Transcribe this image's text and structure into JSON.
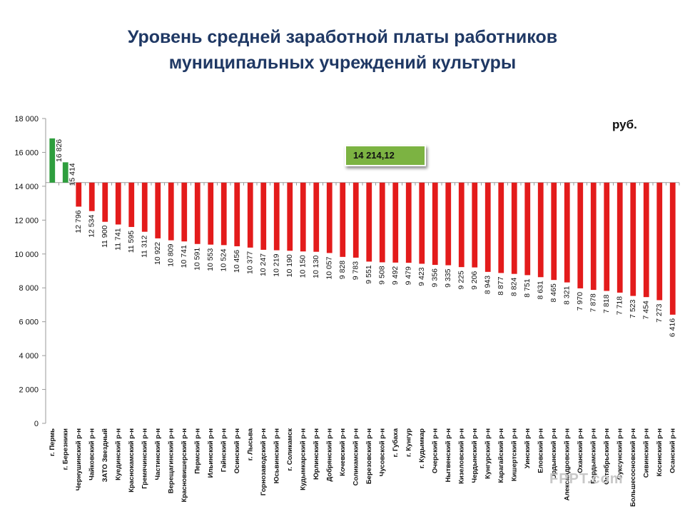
{
  "slide": {
    "title_line1": "Уровень средней заработной платы работников",
    "title_line2": "муниципальных учреждений культуры",
    "unit": "руб.",
    "average_label": "14 214,12",
    "watermark": "FPPT.com"
  },
  "colors": {
    "title": "#1f3864",
    "above_average": "#2e9e3e",
    "below_average": "#e31b1b",
    "average_box": "#7cb342"
  },
  "chart_data": {
    "type": "bar",
    "baseline": 14214.12,
    "ylim": [
      0,
      18000
    ],
    "yticks": [
      0,
      2000,
      4000,
      6000,
      8000,
      10000,
      12000,
      14000,
      16000,
      18000
    ],
    "ytick_labels": [
      "0",
      "2 000",
      "4 000",
      "6 000",
      "8 000",
      "10 000",
      "12 000",
      "14 000",
      "16 000",
      "18 000"
    ],
    "grid": false,
    "categories": [
      "г. Пермь",
      "г. Березники",
      "Чернушинский р-н",
      "Чайковский р-н",
      "ЗАТО Звездный",
      "Куединский р-н",
      "Краснокамский р-н",
      "Гремячинский р-н",
      "Частинский р-н",
      "Верещагинский р-н",
      "Красновишерский р-н",
      "Пермский р-н",
      "Ильинский р-н",
      "Гайнский р-н",
      "Осинский р-н",
      "г. Лысьва",
      "Горнозаводский р-н",
      "Юсьвинский р-н",
      "г. Соликамск",
      "Кудымкарский р-н",
      "Юрлинский р-н",
      "Добрянский р-н",
      "Кочевский р-н",
      "Соликамский р-н",
      "Березовский р-н",
      "Чусовской р-н",
      "г. Губаха",
      "г. Кунгур",
      "г. Кудымкар",
      "Очерский р-н",
      "Нытвенский р-н",
      "Кизеловский р-н",
      "Чердынский р-н",
      "Кунгурский р-н",
      "Карагайский р-н",
      "Кишертский р-н",
      "Уинский р-н",
      "Еловский р-н",
      "Ордынский р-н",
      "Александровский р-н",
      "Оханский р-н",
      "Бардымский р-н",
      "Октябрьский р-н",
      "Суксунский р-н",
      "Большесосновский р-н",
      "Сивинский р-н",
      "Косинский р-н",
      "Осанский р-н"
    ],
    "values": [
      16826,
      15414,
      12796,
      12534,
      11900,
      11741,
      11595,
      11312,
      10922,
      10809,
      10741,
      10591,
      10553,
      10524,
      10456,
      10377,
      10247,
      10219,
      10190,
      10150,
      10130,
      10057,
      9828,
      9783,
      9551,
      9508,
      9492,
      9479,
      9423,
      9356,
      9335,
      9225,
      9206,
      8943,
      8877,
      8824,
      8751,
      8631,
      8465,
      8321,
      7970,
      7878,
      7818,
      7718,
      7523,
      7454,
      7273,
      6416
    ],
    "value_labels": [
      "16 826",
      "15 414",
      "12 796",
      "12 534",
      "11 900",
      "11 741",
      "11 595",
      "11 312",
      "10 922",
      "10 809",
      "10 741",
      "10 591",
      "10 553",
      "10 524",
      "10 456",
      "10 377",
      "10 247",
      "10 219",
      "10 190",
      "10 150",
      "10 130",
      "10 057",
      "9 828",
      "9 783",
      "9 551",
      "9 508",
      "9 492",
      "9 479",
      "9 423",
      "9 356",
      "9 335",
      "9 225",
      "9 206",
      "8 943",
      "8 877",
      "8 824",
      "8 751",
      "8 631",
      "8 465",
      "8 321",
      "7 970",
      "7 878",
      "7 818",
      "7 718",
      "7 523",
      "7 454",
      "7 273",
      "6 416"
    ]
  }
}
